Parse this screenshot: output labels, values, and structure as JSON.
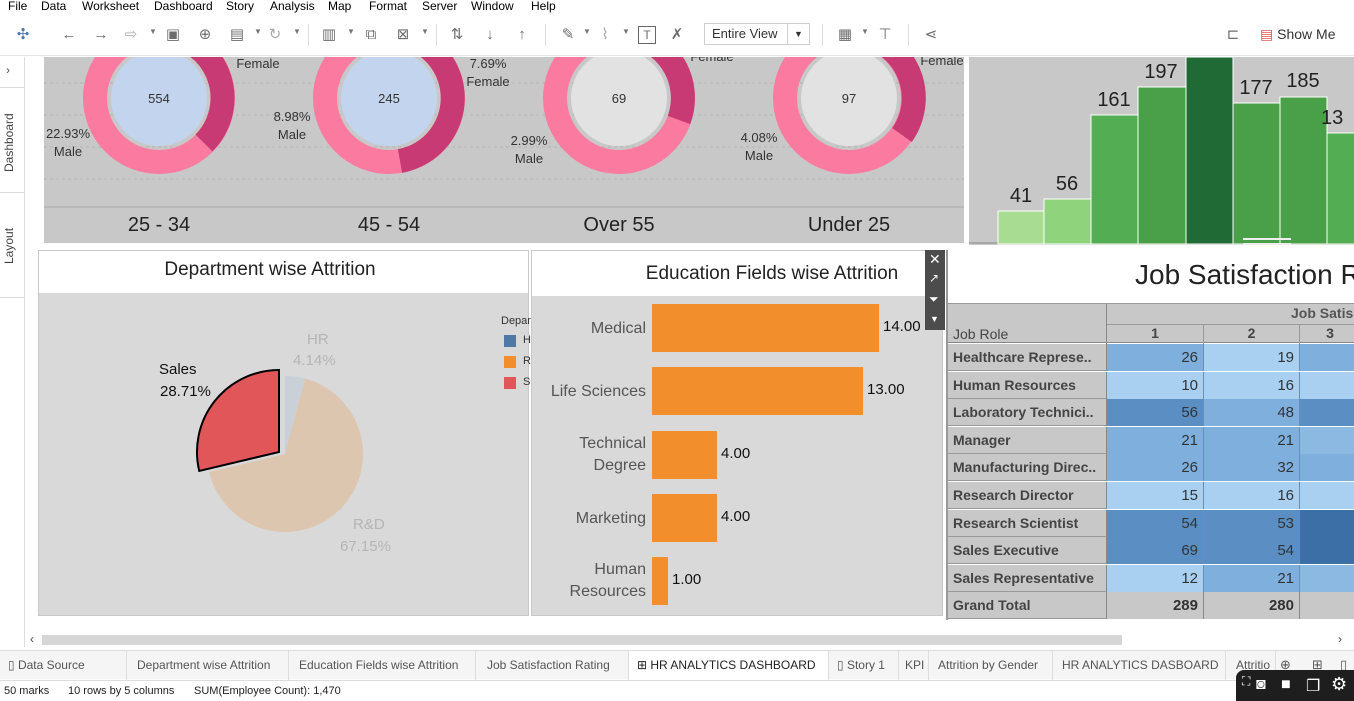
{
  "menu": [
    "File",
    "Data",
    "Worksheet",
    "Dashboard",
    "Story",
    "Analysis",
    "Map",
    "Format",
    "Server",
    "Window",
    "Help"
  ],
  "toolbar": {
    "view_label": "Entire View",
    "show_me_label": "Show Me"
  },
  "side_tabs": [
    "Dashboard",
    "Layout"
  ],
  "gender_donuts": [
    {
      "age_group": "25 - 34",
      "center_value": "554",
      "male_pct": "22.93%",
      "male_label": "Male",
      "female_label": "Female"
    },
    {
      "age_group": "45 - 54",
      "center_value": "245",
      "male_pct": "8.98%",
      "male_label": "Male",
      "female_pct": "7.69%",
      "female_label": "Female"
    },
    {
      "age_group": "Over 55",
      "center_value": "69",
      "male_pct": "2.99%",
      "male_label": "Male",
      "female_label": "Female"
    },
    {
      "age_group": "Under 25",
      "center_value": "97",
      "male_pct": "4.08%",
      "male_label": "Male",
      "female_label": "Female"
    }
  ],
  "histogram": {
    "values": [
      "41",
      "56",
      "161",
      "197",
      "177",
      "185",
      "13"
    ]
  },
  "department": {
    "title": "Department wise Attrition",
    "legend_title": "Depar",
    "legend_items": [
      "H",
      "R",
      "S"
    ],
    "slices": [
      {
        "name": "Sales",
        "pct": "28.71%",
        "value": 28.71,
        "color": "#e15759"
      },
      {
        "name": "HR",
        "pct": "4.14%",
        "value": 4.14,
        "color": "#c9d0d8"
      },
      {
        "name": "R&D",
        "pct": "67.15%",
        "value": 67.15,
        "color": "#dcc6b0"
      }
    ]
  },
  "education": {
    "title": "Education Fields wise Attrition",
    "bars": [
      {
        "label1": "Medical",
        "label2": "",
        "value": 14,
        "value_label": "14.00"
      },
      {
        "label1": "Life Sciences",
        "label2": "",
        "value": 13,
        "value_label": "13.00"
      },
      {
        "label1": "Technical",
        "label2": "Degree",
        "value": 4,
        "value_label": "4.00"
      },
      {
        "label1": "Marketing",
        "label2": "",
        "value": 4,
        "value_label": "4.00"
      },
      {
        "label1": "Human",
        "label2": "Resources",
        "value": 1,
        "value_label": "1.00"
      }
    ]
  },
  "job_satisfaction": {
    "title": "Job Satisfaction R",
    "column_group": "Job Satis",
    "row_header": "Job Role",
    "columns": [
      "1",
      "2",
      "3"
    ],
    "rows": [
      {
        "role": "Healthcare Represe..",
        "c1": "26",
        "c2": "19"
      },
      {
        "role": "Human Resources",
        "c1": "10",
        "c2": "16"
      },
      {
        "role": "Laboratory Technici..",
        "c1": "56",
        "c2": "48"
      },
      {
        "role": "Manager",
        "c1": "21",
        "c2": "21"
      },
      {
        "role": "Manufacturing Direc..",
        "c1": "26",
        "c2": "32"
      },
      {
        "role": "Research Director",
        "c1": "15",
        "c2": "16"
      },
      {
        "role": "Research Scientist",
        "c1": "54",
        "c2": "53"
      },
      {
        "role": "Sales Executive",
        "c1": "69",
        "c2": "54"
      },
      {
        "role": "Sales Representative",
        "c1": "12",
        "c2": "21"
      }
    ],
    "total": {
      "role": "Grand Total",
      "c1": "289",
      "c2": "280"
    }
  },
  "sheet_tabs": [
    "Data Source",
    "Department wise Attrition",
    "Education Fields wise Attrition",
    "Job Satisfaction Rating",
    "HR ANALYTICS DASHBOARD",
    "Story 1",
    "KPI",
    "Attrition by Gender",
    "HR ANALYTICS DASBOARD",
    "Attritio"
  ],
  "status": {
    "marks": "50 marks",
    "rows_cols": "10 rows by 5 columns",
    "sum": "SUM(Employee Count): 1,470"
  }
}
